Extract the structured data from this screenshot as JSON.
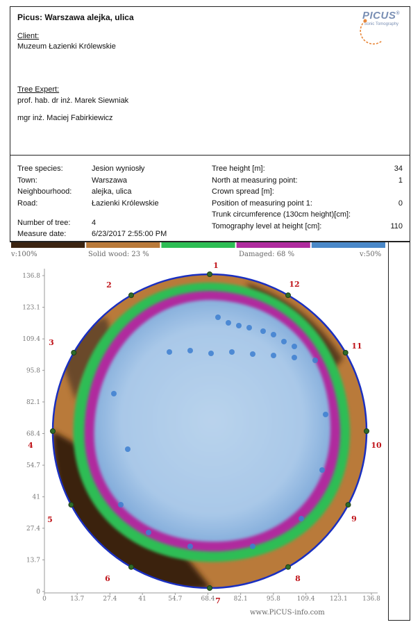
{
  "header": {
    "title": "Picus: Warszawa alejka, ulica",
    "client_label": "Client:",
    "client_name": "Muzeum Łazienki Królewskie",
    "expert_label": "Tree Expert:",
    "expert_1": "prof. hab. dr inż. Marek Siewniak",
    "expert_2": "mgr inż. Maciej Fabirkiewicz"
  },
  "logo": {
    "word": "PICUS",
    "reg": "®",
    "sub": "Sonic Tomography",
    "color": "#7a8fb4",
    "accent": "#e8873a"
  },
  "info": {
    "species_label": "Tree species:",
    "species_value": "Jesion wyniosły",
    "town_label": "Town:",
    "town_value": "Warszawa",
    "neigh_label": "Neighbourhood:",
    "neigh_value": "alejka, ulica",
    "road_label": "Road:",
    "road_value": "Łazienki Królewskie",
    "number_label": "Number of tree:",
    "number_value": "4",
    "date_label": "Measure date:",
    "date_value": "6/23/2017 2:55:00 PM",
    "height_label": "Tree height [m]:",
    "height_value": "34",
    "north_label": "North at measuring point:",
    "north_value": "1",
    "crown_label": "Crown spread [m]:",
    "crown_value": "",
    "position_label": "Position of measuring point 1:",
    "position_value": "0",
    "trunk_label": "Trunk circumference (130cm height)[cm]:",
    "trunk_value": "",
    "level_label": "Tomography level at height [cm]:",
    "level_value": "110"
  },
  "legend": {
    "left": "v:100%",
    "solid": "Solid wood: 23 %",
    "damaged": "Damaged: 68 %",
    "right": "v:50%",
    "colors": [
      "#3b2411",
      "#b97a3a",
      "#2dbd54",
      "#b02c9e",
      "#4a88c8"
    ]
  },
  "axes": {
    "y_ticks": [
      "0",
      "13.7",
      "27.4",
      "41",
      "54.7",
      "68.4",
      "82.1",
      "95.8",
      "109.4",
      "123.1",
      "136.8"
    ],
    "x_ticks": [
      "0",
      "13.7",
      "27.4",
      "41",
      "54.7",
      "68.4",
      "82.1",
      "95.8",
      "109.4",
      "123.1",
      "136.8"
    ],
    "range": [
      0,
      136.8
    ]
  },
  "points": {
    "labels": [
      "1",
      "2",
      "3",
      "4",
      "5",
      "6",
      "7",
      "8",
      "9",
      "10",
      "11",
      "12"
    ]
  },
  "footer": {
    "site": "www.PiCUS-info.com"
  }
}
